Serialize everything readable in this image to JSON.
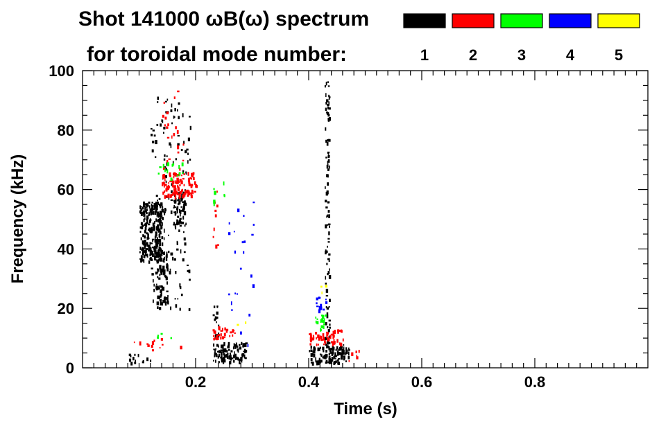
{
  "chart_data": {
    "type": "heatmap",
    "title_line1": "Shot 141000 ωB(ω) spectrum",
    "title_line2": "for toroidal mode number:",
    "xlabel": "Time (s)",
    "ylabel": "Frequency (kHz)",
    "xlim": [
      0.0,
      1.0
    ],
    "ylim": [
      0,
      100
    ],
    "xticks": [
      0.2,
      0.4,
      0.6,
      0.8
    ],
    "xtick_labels": [
      "0.2",
      "0.4",
      "0.6",
      "0.8"
    ],
    "yticks": [
      0,
      20,
      40,
      60,
      80,
      100
    ],
    "ytick_labels": [
      "0",
      "20",
      "40",
      "60",
      "80",
      "100"
    ],
    "legend": [
      {
        "mode": "1",
        "color": "#000000"
      },
      {
        "mode": "2",
        "color": "#ff0000"
      },
      {
        "mode": "3",
        "color": "#00ff00"
      },
      {
        "mode": "4",
        "color": "#0000ff"
      },
      {
        "mode": "5",
        "color": "#ffff00"
      }
    ],
    "blobs": [
      {
        "mode": 1,
        "t": [
          0.1,
          0.14
        ],
        "f": [
          36,
          56
        ],
        "density": 0.85
      },
      {
        "mode": 1,
        "t": [
          0.13,
          0.15
        ],
        "f": [
          22,
          40
        ],
        "density": 0.55
      },
      {
        "mode": 1,
        "t": [
          0.12,
          0.19
        ],
        "f": [
          20,
          92
        ],
        "density": 0.08
      },
      {
        "mode": 1,
        "t": [
          0.16,
          0.18
        ],
        "f": [
          48,
          60
        ],
        "density": 0.6
      },
      {
        "mode": 2,
        "t": [
          0.14,
          0.2
        ],
        "f": [
          58,
          66
        ],
        "density": 0.6
      },
      {
        "mode": 2,
        "t": [
          0.14,
          0.18
        ],
        "f": [
          66,
          94
        ],
        "density": 0.05
      },
      {
        "mode": 3,
        "t": [
          0.13,
          0.18
        ],
        "f": [
          64,
          70
        ],
        "density": 0.12
      },
      {
        "mode": 1,
        "t": [
          0.08,
          0.12
        ],
        "f": [
          2,
          5
        ],
        "density": 0.3
      },
      {
        "mode": 2,
        "t": [
          0.08,
          0.18
        ],
        "f": [
          5,
          10
        ],
        "density": 0.06
      },
      {
        "mode": 3,
        "t": [
          0.13,
          0.16
        ],
        "f": [
          8,
          13
        ],
        "density": 0.08
      },
      {
        "mode": 1,
        "t": [
          0.23,
          0.29
        ],
        "f": [
          2,
          9
        ],
        "density": 0.7
      },
      {
        "mode": 1,
        "t": [
          0.23,
          0.24
        ],
        "f": [
          9,
          22
        ],
        "density": 0.4
      },
      {
        "mode": 2,
        "t": [
          0.23,
          0.27
        ],
        "f": [
          10,
          14
        ],
        "density": 0.45
      },
      {
        "mode": 2,
        "t": [
          0.23,
          0.24
        ],
        "f": [
          40,
          68
        ],
        "density": 0.08
      },
      {
        "mode": 3,
        "t": [
          0.23,
          0.25
        ],
        "f": [
          55,
          64
        ],
        "density": 0.1
      },
      {
        "mode": 4,
        "t": [
          0.25,
          0.31
        ],
        "f": [
          8,
          58
        ],
        "density": 0.02
      },
      {
        "mode": 5,
        "t": [
          0.26,
          0.3
        ],
        "f": [
          14,
          18
        ],
        "density": 0.04
      },
      {
        "mode": 1,
        "t": [
          0.4,
          0.47
        ],
        "f": [
          2,
          8
        ],
        "density": 0.75
      },
      {
        "mode": 1,
        "t": [
          0.428,
          0.436
        ],
        "f": [
          8,
          97
        ],
        "density": 0.35
      },
      {
        "mode": 2,
        "t": [
          0.4,
          0.46
        ],
        "f": [
          8,
          13
        ],
        "density": 0.5
      },
      {
        "mode": 3,
        "t": [
          0.41,
          0.43
        ],
        "f": [
          13,
          18
        ],
        "density": 0.5
      },
      {
        "mode": 4,
        "t": [
          0.41,
          0.43
        ],
        "f": [
          19,
          24
        ],
        "density": 0.35
      },
      {
        "mode": 5,
        "t": [
          0.42,
          0.43
        ],
        "f": [
          25,
          28
        ],
        "density": 0.25
      },
      {
        "mode": 2,
        "t": [
          0.47,
          0.49
        ],
        "f": [
          2,
          8
        ],
        "density": 0.12
      }
    ]
  }
}
